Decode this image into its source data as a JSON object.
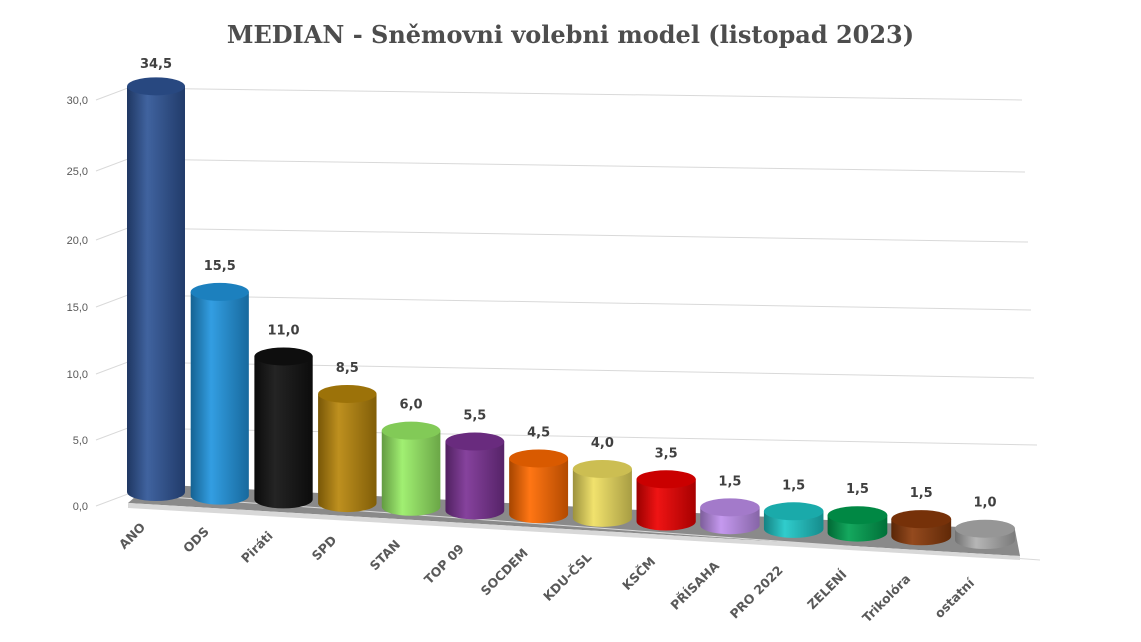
{
  "chart_data": {
    "type": "bar",
    "style": "3d-cylinder",
    "title": "MEDIAN - Sněmovni volebni model (listopad 2023)",
    "xlabel": "",
    "ylabel": "",
    "ylim": [
      0,
      30
    ],
    "yticks": [
      "0,0",
      "5,0",
      "10,0",
      "15,0",
      "20,0",
      "25,0",
      "30,0"
    ],
    "grid": true,
    "legend": null,
    "categories": [
      "ANO",
      "ODS",
      "Piráti",
      "SPD",
      "STAN",
      "TOP 09",
      "SOCDEM",
      "KDU-ČSL",
      "KSČM",
      "PŘÍSAHA",
      "PRO 2022",
      "ZELENÍ",
      "Trikolóra",
      "ostatní"
    ],
    "values": [
      34.5,
      15.5,
      11.0,
      8.5,
      6.0,
      5.5,
      4.5,
      4.0,
      3.5,
      1.5,
      1.5,
      1.5,
      1.5,
      1.0
    ],
    "value_labels": [
      "34,5",
      "15,5",
      "11,0",
      "8,5",
      "6,0",
      "5,5",
      "4,5",
      "4,0",
      "3,5",
      "1,5",
      "1,5",
      "1,5",
      "1,5",
      "1,0"
    ],
    "colors": [
      "#2f5597",
      "#2196e0",
      "#111111",
      "#b8860b",
      "#99ee66",
      "#7b3294",
      "#ff6a00",
      "#f0e060",
      "#ee0000",
      "#c090ee",
      "#1ec8c8",
      "#00a050",
      "#8b3a0a",
      "#b0b0b0"
    ]
  }
}
